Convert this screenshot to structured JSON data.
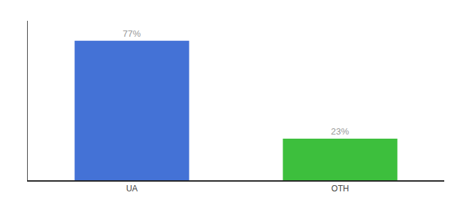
{
  "chart_data": {
    "type": "bar",
    "categories": [
      "UA",
      "OTH"
    ],
    "values": [
      77,
      23
    ],
    "value_labels": [
      "77%",
      "23%"
    ],
    "colors": [
      "#4472d6",
      "#3dbf3d"
    ],
    "ylim": [
      0,
      88
    ],
    "data_labels": true,
    "tick_labels": "x",
    "grid": false
  }
}
